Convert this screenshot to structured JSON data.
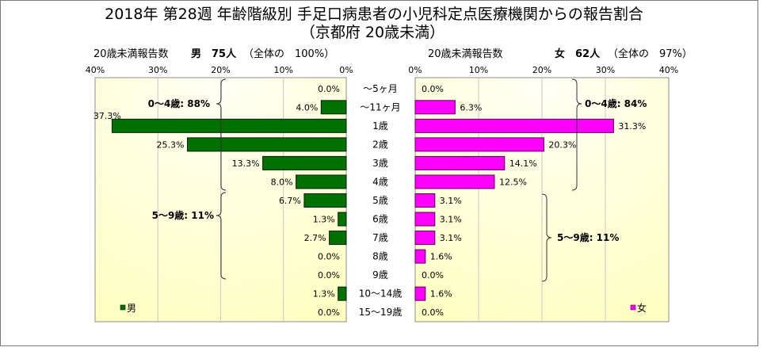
{
  "chart_data": {
    "type": "bar",
    "orientation": "horizontal",
    "title": "2018年 第28週 年齢階級別 手足口病患者の小児科定点医療機関からの報告割合",
    "subtitle": "（京都府 20歳未満）",
    "categories": [
      "～5ヶ月",
      "～11ヶ月",
      "1歳",
      "2歳",
      "3歳",
      "4歳",
      "5歳",
      "6歳",
      "7歳",
      "8歳",
      "9歳",
      "10～14歳",
      "15～19歳"
    ],
    "unit": "%",
    "xlim": [
      0,
      40
    ],
    "xticks": [
      0,
      10,
      20,
      30,
      40
    ],
    "grid": true,
    "legend": "bottom",
    "series": [
      {
        "name": "男",
        "color": "#007000",
        "header": {
          "label": "20歳未満報告数",
          "count": "男　75人",
          "share": "（全体の　100%）"
        },
        "values": [
          0.0,
          4.0,
          37.3,
          25.3,
          13.3,
          8.0,
          6.7,
          1.3,
          2.7,
          0.0,
          0.0,
          1.3,
          0.0
        ],
        "annotations": [
          "0～4歳: 88%",
          "5～9歳: 11%"
        ]
      },
      {
        "name": "女",
        "color": "#FF00FF",
        "header": {
          "label": "20歳未満報告数",
          "count": "女　62人",
          "share": "（全体の　97%）"
        },
        "values": [
          0.0,
          6.3,
          31.3,
          20.3,
          14.1,
          12.5,
          3.1,
          3.1,
          3.1,
          1.6,
          0.0,
          1.6,
          0.0
        ],
        "annotations": [
          "0～4歳: 84%",
          "5～9歳: 11%"
        ]
      }
    ]
  }
}
